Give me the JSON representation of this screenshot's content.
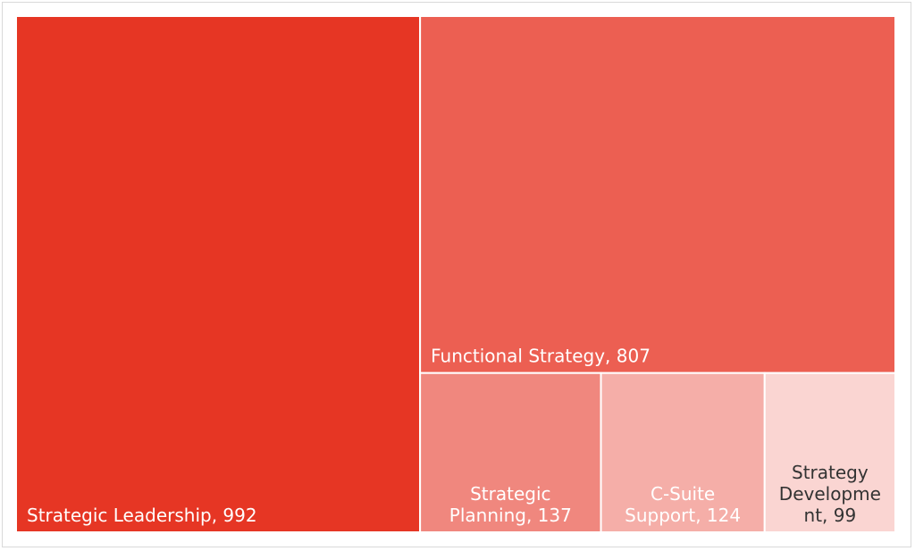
{
  "chart_data": {
    "type": "treemap",
    "series": [
      {
        "values": [
          {
            "label": "Strategic Leadership",
            "value": 992,
            "display": "Strategic Leadership, 992",
            "color": "#e63624"
          },
          {
            "label": "Functional Strategy",
            "value": 807,
            "display": "Functional Strategy, 807",
            "color": "#ec5f52"
          },
          {
            "label": "Strategic Planning",
            "value": 137,
            "display": "Strategic Planning, 137",
            "color": "#f0877e"
          },
          {
            "label": "C-Suite Support",
            "value": 124,
            "display": "C-Suite Support, 124",
            "color": "#f5aea8"
          },
          {
            "label": "Strategy Development",
            "value": 99,
            "display": "Strategy Development, 99",
            "color": "#fad5d2"
          }
        ]
      }
    ],
    "text_color_light": "#ffffff",
    "text_color_dark": "#333333"
  }
}
